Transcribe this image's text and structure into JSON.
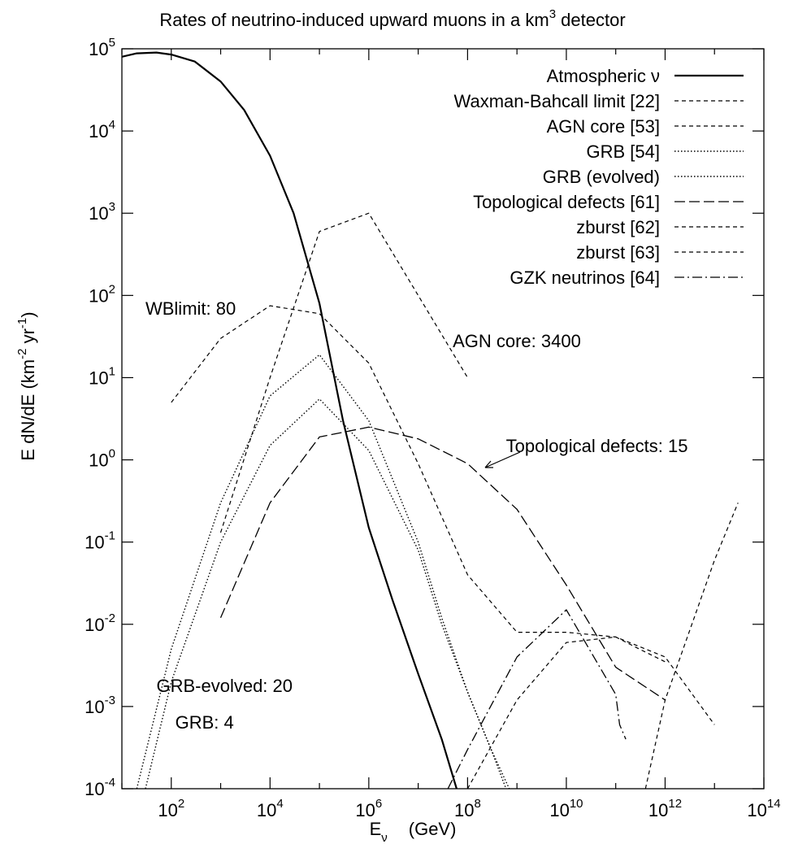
{
  "chart_data": {
    "type": "line",
    "title": {
      "pre": "Rates of neutrino-induced upward muons in a km",
      "sup": "3",
      "post": " detector"
    },
    "xlabel": {
      "main": "E",
      "sub": "ν",
      "unit": "(GeV)"
    },
    "ylabel": {
      "pre": "E  dN/dE   (km",
      "sup1": "-2",
      "mid": "  yr",
      "sup2": "-1",
      "post": ")"
    },
    "x_scale": "log",
    "y_scale": "log",
    "xlim": [
      10,
      100000000000000
    ],
    "ylim": [
      0.0001,
      100000
    ],
    "grid": false,
    "legend_position": "top-right",
    "x_ticks": [
      {
        "value": 100,
        "base": "10",
        "exp": "2"
      },
      {
        "value": 10000,
        "base": "10",
        "exp": "4"
      },
      {
        "value": 1000000,
        "base": "10",
        "exp": "6"
      },
      {
        "value": 100000000,
        "base": "10",
        "exp": "8"
      },
      {
        "value": 10000000000,
        "base": "10",
        "exp": "10"
      },
      {
        "value": 1000000000000,
        "base": "10",
        "exp": "12"
      },
      {
        "value": 100000000000000,
        "base": "10",
        "exp": "14"
      }
    ],
    "y_ticks": [
      {
        "value": 0.0001,
        "base": "10",
        "exp": "-4"
      },
      {
        "value": 0.001,
        "base": "10",
        "exp": "-3"
      },
      {
        "value": 0.01,
        "base": "10",
        "exp": "-2"
      },
      {
        "value": 0.1,
        "base": "10",
        "exp": "-1"
      },
      {
        "value": 1,
        "base": "10",
        "exp": "0"
      },
      {
        "value": 10,
        "base": "10",
        "exp": "1"
      },
      {
        "value": 100,
        "base": "10",
        "exp": "2"
      },
      {
        "value": 1000,
        "base": "10",
        "exp": "3"
      },
      {
        "value": 10000,
        "base": "10",
        "exp": "4"
      },
      {
        "value": 100000,
        "base": "10",
        "exp": "5"
      }
    ],
    "series": [
      {
        "name": "Atmospheric ν",
        "dash": "solid",
        "x": [
          10,
          20,
          50,
          100,
          300,
          1000,
          3000,
          10000,
          30000,
          100000,
          300000,
          1000000,
          3000000,
          10000000,
          30000000,
          60000000
        ],
        "y": [
          80000,
          88000,
          90000,
          85000,
          70000,
          40000,
          18000,
          5000,
          1000,
          80,
          3,
          0.15,
          0.02,
          0.0025,
          0.0004,
          0.0001
        ]
      },
      {
        "name": "Waxman-Bahcall limit [22]",
        "dash": "short",
        "x": [
          100,
          1000,
          10000,
          100000,
          1000000,
          10000000,
          100000000,
          1000000000,
          10000000000,
          100000000000,
          1000000000000,
          10000000000000
        ],
        "y": [
          5,
          30,
          75,
          60,
          15,
          0.9,
          0.04,
          0.008,
          0.008,
          0.007,
          0.004,
          0.0006
        ]
      },
      {
        "name": "AGN core [53]",
        "dash": "short",
        "x": [
          1000,
          10000,
          100000,
          1000000,
          10000000,
          100000000
        ],
        "y": [
          0.13,
          10,
          600,
          1000,
          100,
          10
        ]
      },
      {
        "name": "GRB [54]",
        "dash": "dotted",
        "x": [
          30,
          100,
          1000,
          10000,
          100000,
          1000000,
          10000000,
          30000000,
          100000000,
          300000000,
          600000000
        ],
        "y": [
          0.0001,
          0.002,
          0.1,
          1.5,
          5.5,
          1.3,
          0.08,
          0.01,
          0.0015,
          0.0003,
          0.0001
        ]
      },
      {
        "name": "GRB (evolved)",
        "dash": "dotted",
        "x": [
          20,
          100,
          1000,
          10000,
          100000,
          1000000,
          10000000,
          30000000,
          100000000,
          300000000,
          700000000
        ],
        "y": [
          0.0001,
          0.005,
          0.3,
          6,
          19,
          3,
          0.1,
          0.012,
          0.0015,
          0.0003,
          0.0001
        ]
      },
      {
        "name": "Topological defects [61]",
        "dash": "long",
        "x": [
          1000,
          10000,
          100000,
          1000000,
          10000000,
          100000000,
          1000000000,
          10000000000,
          100000000000,
          1000000000000
        ],
        "y": [
          0.012,
          0.3,
          1.9,
          2.5,
          1.8,
          0.9,
          0.25,
          0.03,
          0.003,
          0.0012
        ]
      },
      {
        "name": "zburst [62]",
        "dash": "short",
        "x": [
          100000000,
          1000000000,
          10000000000,
          100000000000,
          300000000000,
          1000000000000
        ],
        "y": [
          0.0001,
          0.0012,
          0.006,
          0.007,
          0.005,
          0.0035
        ]
      },
      {
        "name": "zburst [63]",
        "dash": "short",
        "x": [
          400000000000,
          1000000000000,
          10000000000000,
          30000000000000
        ],
        "y": [
          0.0001,
          0.0012,
          0.06,
          0.3
        ]
      },
      {
        "name": "GZK neutrinos [64]",
        "dash": "dashdot",
        "x": [
          40000000,
          100000000,
          1000000000,
          10000000000,
          100000000000,
          120000000000,
          160000000000
        ],
        "y": [
          0.0001,
          0.0003,
          0.004,
          0.015,
          0.0014,
          0.0006,
          0.0004
        ]
      }
    ],
    "annotations": [
      {
        "text": "WBlimit: 80",
        "x": 30,
        "y": 70
      },
      {
        "text": "AGN core: 3400",
        "x": 50000000,
        "y": 28
      },
      {
        "text": "Topological defects: 15",
        "x": 600000000,
        "y": 1.5
      },
      {
        "text": "GRB-evolved: 20",
        "x": 50,
        "y": 0.0018
      },
      {
        "text": "GRB: 4",
        "x": 120,
        "y": 0.00065
      }
    ]
  }
}
